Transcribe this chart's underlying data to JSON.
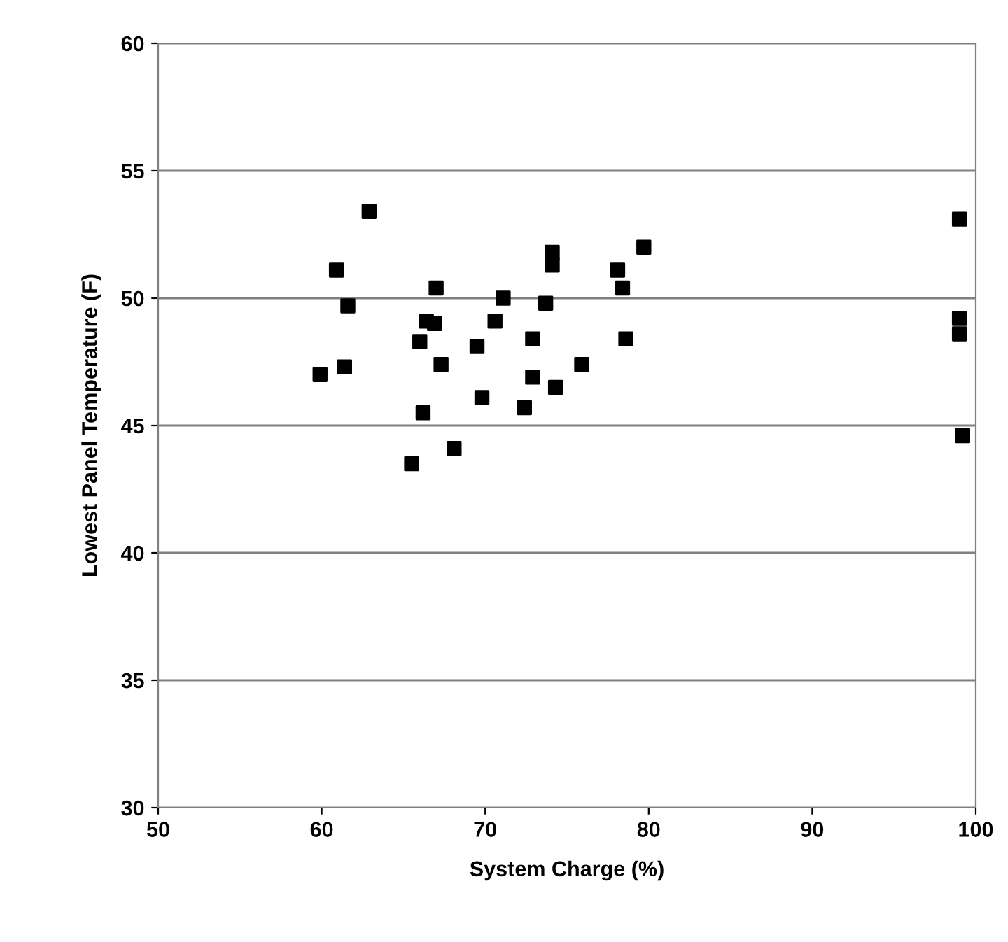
{
  "chart_data": {
    "type": "scatter",
    "xlabel": "System Charge (%)",
    "ylabel": "Lowest Panel Temperature (F)",
    "x": [
      59.9,
      60.9,
      61.6,
      61.4,
      62.9,
      65.5,
      66.0,
      66.2,
      66.4,
      66.9,
      67.0,
      67.3,
      68.1,
      69.5,
      69.8,
      70.6,
      71.1,
      72.4,
      72.9,
      72.9,
      73.7,
      74.1,
      74.1,
      74.3,
      75.9,
      78.1,
      78.4,
      78.6,
      79.7,
      99.0,
      99.0,
      99.0,
      99.2
    ],
    "series": [
      {
        "color": "#000000",
        "values": [
          47.0,
          51.1,
          49.7,
          47.3,
          53.4,
          43.5,
          48.3,
          45.5,
          49.1,
          49.0,
          50.4,
          47.4,
          44.1,
          48.1,
          46.1,
          49.1,
          50.0,
          45.7,
          48.4,
          46.9,
          49.8,
          51.8,
          51.3,
          46.5,
          47.4,
          51.1,
          50.4,
          48.4,
          52.0,
          53.1,
          49.2,
          48.6,
          44.6
        ]
      }
    ],
    "xlim": [
      50,
      100
    ],
    "xticks": [
      50,
      60,
      70,
      80,
      90,
      100
    ],
    "ylim": [
      30,
      60
    ],
    "yticks": [
      30,
      35,
      40,
      45,
      50,
      55,
      60
    ],
    "grid": "y",
    "marker": "square"
  }
}
